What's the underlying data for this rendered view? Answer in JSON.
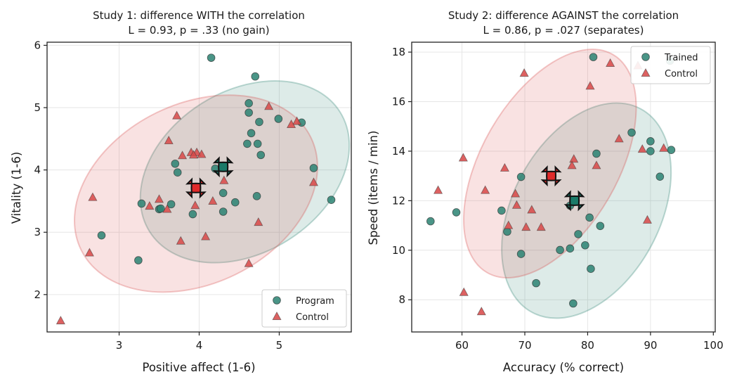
{
  "colors": {
    "group1": "#2a8272",
    "group2": "#d84b4b",
    "centroid1": "#1a7a68",
    "centroid2": "#e02a2a"
  },
  "chart_data": [
    {
      "type": "scatter",
      "title": "Study 1: difference WITH the correlation",
      "subtitle": "L = 0.93, p = .33  (no gain)",
      "xlabel": "Positive affect (1-6)",
      "ylabel": "Vitality (1-6)",
      "xlim": [
        2.1,
        5.9
      ],
      "ylim": [
        1.4,
        6.05
      ],
      "xticks": [
        3,
        4,
        5
      ],
      "yticks": [
        2,
        3,
        4,
        5,
        6
      ],
      "grid": true,
      "legend": "lower-right",
      "series": [
        {
          "name": "Program",
          "marker": "circle",
          "points": [
            [
              4.15,
              5.8
            ],
            [
              4.7,
              5.5
            ],
            [
              4.62,
              5.07
            ],
            [
              4.62,
              4.92
            ],
            [
              4.75,
              4.77
            ],
            [
              4.99,
              4.82
            ],
            [
              5.28,
              4.76
            ],
            [
              4.65,
              4.59
            ],
            [
              4.6,
              4.42
            ],
            [
              4.73,
              4.42
            ],
            [
              4.77,
              4.24
            ],
            [
              5.43,
              4.03
            ],
            [
              3.7,
              4.1
            ],
            [
              3.73,
              3.96
            ],
            [
              4.2,
              4.02
            ],
            [
              4.3,
              3.63
            ],
            [
              4.45,
              3.48
            ],
            [
              4.72,
              3.58
            ],
            [
              5.65,
              3.52
            ],
            [
              3.28,
              3.46
            ],
            [
              3.5,
              3.37
            ],
            [
              3.52,
              3.38
            ],
            [
              3.65,
              3.45
            ],
            [
              3.92,
              3.29
            ],
            [
              4.3,
              3.33
            ],
            [
              2.78,
              2.95
            ],
            [
              3.24,
              2.55
            ]
          ]
        },
        {
          "name": "Control",
          "marker": "triangle",
          "points": [
            [
              3.72,
              4.87
            ],
            [
              4.87,
              5.02
            ],
            [
              5.22,
              4.78
            ],
            [
              5.15,
              4.73
            ],
            [
              3.62,
              4.47
            ],
            [
              3.9,
              4.28
            ],
            [
              3.97,
              4.28
            ],
            [
              3.93,
              4.24
            ],
            [
              3.79,
              4.23
            ],
            [
              4.03,
              4.25
            ],
            [
              4.31,
              3.83
            ],
            [
              5.43,
              3.8
            ],
            [
              2.67,
              3.56
            ],
            [
              3.5,
              3.53
            ],
            [
              3.38,
              3.42
            ],
            [
              3.6,
              3.37
            ],
            [
              3.95,
              3.43
            ],
            [
              4.17,
              3.5
            ],
            [
              4.74,
              3.16
            ],
            [
              4.08,
              2.93
            ],
            [
              3.77,
              2.86
            ],
            [
              2.63,
              2.67
            ],
            [
              4.62,
              2.5
            ],
            [
              2.27,
              1.58
            ]
          ]
        }
      ],
      "centroids": [
        [
          4.3,
          4.05
        ],
        [
          3.96,
          3.71
        ]
      ]
    },
    {
      "type": "scatter",
      "title": "Study 2: difference AGAINST the correlation",
      "subtitle": "L = 0.86, p = .027  (separates)",
      "xlabel": "Accuracy (% correct)",
      "ylabel": "Speed (items / min)",
      "xlim": [
        52,
        100.3
      ],
      "ylim": [
        6.7,
        18.4
      ],
      "xticks": [
        60,
        70,
        80,
        90,
        100
      ],
      "yticks": [
        8,
        10,
        12,
        14,
        16,
        18
      ],
      "grid": true,
      "legend": "upper-right",
      "series": [
        {
          "name": "Trained",
          "marker": "circle",
          "points": [
            [
              80.9,
              17.8
            ],
            [
              93.1,
              17.65
            ],
            [
              87,
              14.75
            ],
            [
              90,
              14.4
            ],
            [
              93.3,
              14.05
            ],
            [
              90,
              14
            ],
            [
              81.4,
              13.9
            ],
            [
              69.4,
              12.96
            ],
            [
              91.5,
              12.97
            ],
            [
              77.2,
              11.8
            ],
            [
              66.3,
              11.6
            ],
            [
              59.1,
              11.53
            ],
            [
              55,
              11.17
            ],
            [
              80.3,
              11.32
            ],
            [
              82,
              10.98
            ],
            [
              67.2,
              10.75
            ],
            [
              78.5,
              10.65
            ],
            [
              75.6,
              10.01
            ],
            [
              77.2,
              10.07
            ],
            [
              79.6,
              10.2
            ],
            [
              69.4,
              9.85
            ],
            [
              80.5,
              9.25
            ],
            [
              71.8,
              8.67
            ],
            [
              77.7,
              7.85
            ]
          ]
        },
        {
          "name": "Control",
          "marker": "triangle",
          "points": [
            [
              69.9,
              17.15
            ],
            [
              83.6,
              17.55
            ],
            [
              88,
              17.45
            ],
            [
              80.4,
              16.63
            ],
            [
              85,
              14.5
            ],
            [
              88.7,
              14.08
            ],
            [
              92.1,
              14.12
            ],
            [
              60.2,
              13.73
            ],
            [
              77.8,
              13.68
            ],
            [
              81.4,
              13.42
            ],
            [
              66.8,
              13.32
            ],
            [
              77.5,
              13.42
            ],
            [
              56.2,
              12.42
            ],
            [
              63.7,
              12.42
            ],
            [
              68.5,
              12.28
            ],
            [
              68.7,
              11.82
            ],
            [
              71.1,
              11.63
            ],
            [
              89.5,
              11.22
            ],
            [
              67.4,
              11
            ],
            [
              70.2,
              10.93
            ],
            [
              72.6,
              10.93
            ],
            [
              60.3,
              8.3
            ],
            [
              63.1,
              7.52
            ]
          ]
        }
      ],
      "centroids": [
        [
          77.9,
          12.0
        ],
        [
          74.2,
          13.0
        ]
      ]
    }
  ]
}
